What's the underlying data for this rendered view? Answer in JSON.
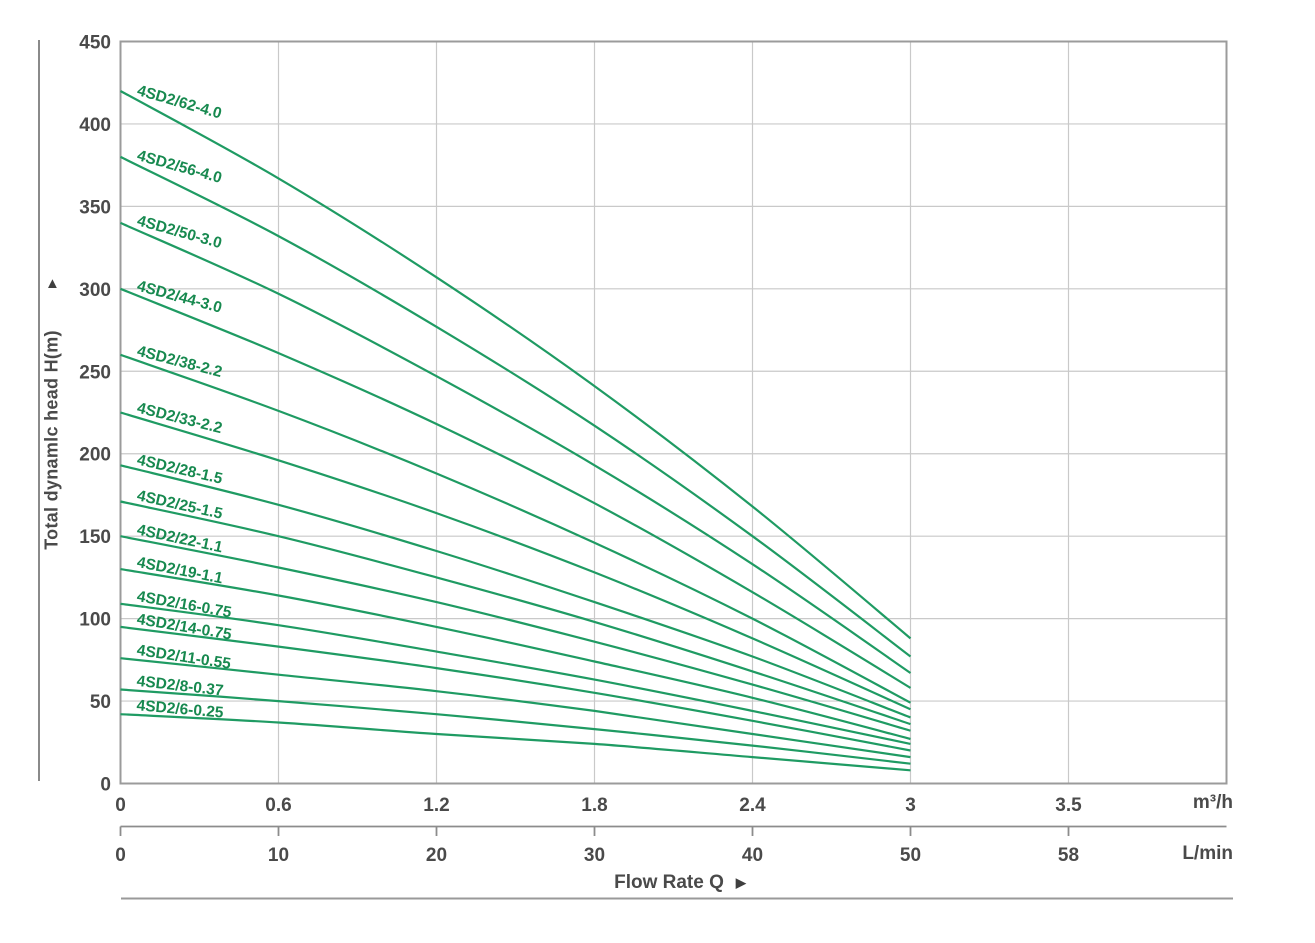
{
  "decor": {
    "up_arrow": "▲",
    "right_arrow": "▶"
  },
  "chart_data": {
    "type": "line",
    "title": "",
    "y_axis": {
      "label": "Total dynamlc head H(m)",
      "ticks": [
        0,
        50,
        100,
        150,
        200,
        250,
        300,
        350,
        400,
        450
      ],
      "ylim": [
        0,
        450
      ],
      "grid": true
    },
    "x_axis": {
      "label": "Flow Rate Q",
      "units": [
        "m³/h",
        "L/min"
      ],
      "ticks_m3h": [
        "0",
        "0.6",
        "1.2",
        "1.8",
        "2.4",
        "3",
        "3.5"
      ],
      "ticks_lmin": [
        "0",
        "10",
        "20",
        "30",
        "40",
        "50",
        "58"
      ],
      "grid": true
    },
    "x_samples_m3h": [
      0,
      0.6,
      1.2,
      1.8,
      2.4,
      3
    ],
    "series": [
      {
        "name": "4SD2/62-4.0",
        "values": [
          420,
          367,
          307,
          241,
          168,
          88
        ],
        "label_angle": 16
      },
      {
        "name": "4SD2/56-4.0",
        "values": [
          380,
          332,
          277,
          217,
          150,
          77
        ],
        "label_angle": 15.5
      },
      {
        "name": "4SD2/50-3.0",
        "values": [
          340,
          297,
          247,
          193,
          133,
          67
        ],
        "label_angle": 15.5
      },
      {
        "name": "4SD2/44-3.0",
        "values": [
          300,
          261,
          218,
          170,
          116,
          58
        ],
        "label_angle": 15
      },
      {
        "name": "4SD2/38-2.2",
        "values": [
          260,
          226,
          188,
          146,
          100,
          49
        ],
        "label_angle": 14.5
      },
      {
        "name": "4SD2/33-2.2",
        "values": [
          225,
          196,
          164,
          128,
          88,
          45
        ],
        "label_angle": 14
      },
      {
        "name": "4SD2/28-1.5",
        "values": [
          193,
          169,
          141,
          110,
          77,
          40
        ],
        "label_angle": 13
      },
      {
        "name": "4SD2/25-1.5",
        "values": [
          171,
          150,
          125,
          98,
          68,
          36
        ],
        "label_angle": 12.5
      },
      {
        "name": "4SD2/22-1.1",
        "values": [
          150,
          131,
          110,
          86,
          60,
          32
        ],
        "label_angle": 12
      },
      {
        "name": "4SD2/19-1.1",
        "values": [
          130,
          114,
          95,
          74,
          52,
          27
        ],
        "label_angle": 11
      },
      {
        "name": "4SD2/16-0.75",
        "values": [
          109,
          96,
          80,
          63,
          44,
          24
        ],
        "label_angle": 10
      },
      {
        "name": "4SD2/14-0.75",
        "values": [
          95,
          83,
          70,
          55,
          38,
          20
        ],
        "label_angle": 9.5
      },
      {
        "name": "4SD2/11-0.55",
        "values": [
          76,
          66,
          56,
          44,
          30,
          16
        ],
        "label_angle": 8.5
      },
      {
        "name": "4SD2/8-0.37",
        "values": [
          57,
          50,
          42,
          33,
          23,
          12
        ],
        "label_angle": 6.5
      },
      {
        "name": "4SD2/6-0.25",
        "values": [
          42,
          37,
          30,
          24,
          16,
          8
        ],
        "label_angle": 5
      }
    ],
    "colors": {
      "curve": "#1f9b63",
      "curve_label": "#17894f",
      "grid": "#c9c9c9",
      "border": "#9b9b9b",
      "axis_text": "#4a4a4a",
      "ruler": "#8c8c8c"
    },
    "legend": "labels-on-curves"
  }
}
